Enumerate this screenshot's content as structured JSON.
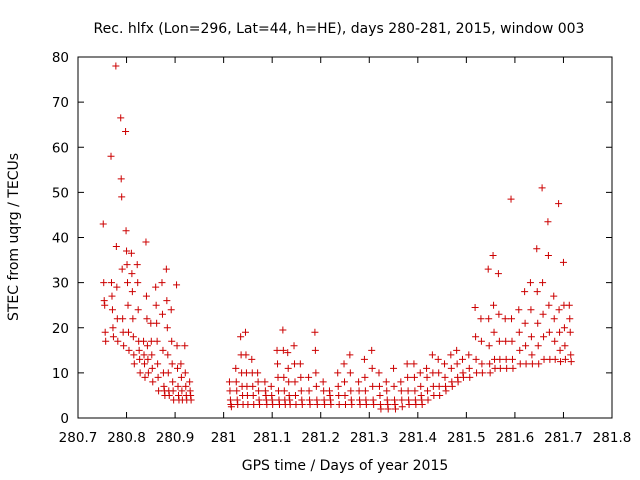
{
  "chart_data": {
    "type": "scatter",
    "title": "Rec. hlfx (Lon=296, Lat=44, h=HE), days 280-281, 2015, window 003",
    "xlabel": "GPS time / Days of year 2015",
    "ylabel": "STEC from uqrg / TECUs",
    "xlim": [
      280.7,
      281.8
    ],
    "ylim": [
      0,
      80
    ],
    "xticks": [
      280.7,
      280.8,
      280.9,
      281,
      281.1,
      281.2,
      281.3,
      281.4,
      281.5,
      281.6,
      281.7,
      281.8
    ],
    "xtick_labels": [
      "280.7",
      "280.8",
      "280.9",
      "281",
      "281.1",
      "281.2",
      "281.3",
      "281.4",
      "281.5",
      "281.6",
      "281.7",
      "281.8"
    ],
    "yticks": [
      0,
      10,
      20,
      30,
      40,
      50,
      60,
      70,
      80
    ],
    "ytick_labels": [
      "0",
      "10",
      "20",
      "30",
      "40",
      "50",
      "60",
      "70",
      "80"
    ],
    "grid": false,
    "marker": "plus",
    "color": "#cc0000",
    "points": [
      [
        280.752,
        43
      ],
      [
        280.753,
        30
      ],
      [
        280.754,
        26
      ],
      [
        280.755,
        25
      ],
      [
        280.756,
        19
      ],
      [
        280.757,
        17
      ],
      [
        280.768,
        58
      ],
      [
        280.769,
        30
      ],
      [
        280.77,
        27
      ],
      [
        280.771,
        24
      ],
      [
        280.772,
        20
      ],
      [
        280.773,
        18
      ],
      [
        280.778,
        78
      ],
      [
        280.779,
        38
      ],
      [
        280.78,
        29
      ],
      [
        280.781,
        22
      ],
      [
        280.782,
        17
      ],
      [
        280.788,
        66.5
      ],
      [
        280.789,
        53
      ],
      [
        280.79,
        49
      ],
      [
        280.791,
        33
      ],
      [
        280.792,
        22
      ],
      [
        280.793,
        19
      ],
      [
        280.794,
        16
      ],
      [
        280.798,
        63.5
      ],
      [
        280.799,
        41.5
      ],
      [
        280.8,
        37
      ],
      [
        280.801,
        34
      ],
      [
        280.802,
        30
      ],
      [
        280.803,
        25
      ],
      [
        280.804,
        19
      ],
      [
        280.805,
        15
      ],
      [
        280.81,
        36.5
      ],
      [
        280.811,
        32
      ],
      [
        280.812,
        28
      ],
      [
        280.813,
        22
      ],
      [
        280.814,
        18
      ],
      [
        280.815,
        14
      ],
      [
        280.816,
        12
      ],
      [
        280.822,
        34
      ],
      [
        280.823,
        30
      ],
      [
        280.824,
        24
      ],
      [
        280.825,
        17
      ],
      [
        280.826,
        15
      ],
      [
        280.827,
        13
      ],
      [
        280.828,
        10
      ],
      [
        280.835,
        17
      ],
      [
        280.836,
        14
      ],
      [
        280.837,
        12
      ],
      [
        280.838,
        9
      ],
      [
        280.84,
        39
      ],
      [
        280.841,
        27
      ],
      [
        280.842,
        22
      ],
      [
        280.843,
        16
      ],
      [
        280.844,
        13
      ],
      [
        280.845,
        10
      ],
      [
        280.85,
        21
      ],
      [
        280.851,
        17
      ],
      [
        280.852,
        14
      ],
      [
        280.853,
        11
      ],
      [
        280.854,
        8
      ],
      [
        280.86,
        29
      ],
      [
        280.861,
        25
      ],
      [
        280.862,
        21
      ],
      [
        280.863,
        17
      ],
      [
        280.864,
        12
      ],
      [
        280.865,
        9
      ],
      [
        280.866,
        6
      ],
      [
        280.873,
        30
      ],
      [
        280.874,
        23
      ],
      [
        280.875,
        15
      ],
      [
        280.876,
        10
      ],
      [
        280.877,
        7
      ],
      [
        280.878,
        6
      ],
      [
        280.879,
        5
      ],
      [
        280.882,
        33
      ],
      [
        280.883,
        26
      ],
      [
        280.884,
        20
      ],
      [
        280.885,
        14
      ],
      [
        280.886,
        10
      ],
      [
        280.887,
        6
      ],
      [
        280.888,
        5
      ],
      [
        280.892,
        24
      ],
      [
        280.893,
        17
      ],
      [
        280.894,
        12
      ],
      [
        280.895,
        8
      ],
      [
        280.896,
        6
      ],
      [
        280.897,
        4
      ],
      [
        280.903,
        29.5
      ],
      [
        280.904,
        16
      ],
      [
        280.905,
        11
      ],
      [
        280.906,
        7
      ],
      [
        280.907,
        5
      ],
      [
        280.908,
        4
      ],
      [
        280.912,
        12
      ],
      [
        280.913,
        9
      ],
      [
        280.914,
        6
      ],
      [
        280.915,
        4
      ],
      [
        280.92,
        16
      ],
      [
        280.921,
        10
      ],
      [
        280.922,
        7
      ],
      [
        280.923,
        5
      ],
      [
        280.924,
        4
      ],
      [
        280.93,
        8
      ],
      [
        280.931,
        6
      ],
      [
        280.932,
        5
      ],
      [
        280.933,
        4
      ],
      [
        281.012,
        8
      ],
      [
        281.013,
        6
      ],
      [
        281.014,
        4
      ],
      [
        281.015,
        3
      ],
      [
        281.016,
        2.5
      ],
      [
        281.025,
        11
      ],
      [
        281.026,
        8
      ],
      [
        281.027,
        6
      ],
      [
        281.028,
        4
      ],
      [
        281.029,
        3
      ],
      [
        281.035,
        18
      ],
      [
        281.036,
        14
      ],
      [
        281.037,
        10
      ],
      [
        281.038,
        7
      ],
      [
        281.039,
        5
      ],
      [
        281.04,
        3
      ],
      [
        281.045,
        19
      ],
      [
        281.046,
        14
      ],
      [
        281.047,
        10
      ],
      [
        281.048,
        7
      ],
      [
        281.049,
        5
      ],
      [
        281.05,
        3
      ],
      [
        281.058,
        13
      ],
      [
        281.059,
        10
      ],
      [
        281.06,
        7
      ],
      [
        281.061,
        5
      ],
      [
        281.062,
        3
      ],
      [
        281.07,
        10
      ],
      [
        281.071,
        8
      ],
      [
        281.072,
        6
      ],
      [
        281.073,
        4
      ],
      [
        281.074,
        3
      ],
      [
        281.085,
        8
      ],
      [
        281.086,
        6
      ],
      [
        281.087,
        5
      ],
      [
        281.088,
        4
      ],
      [
        281.089,
        3
      ],
      [
        281.098,
        7
      ],
      [
        281.099,
        5
      ],
      [
        281.1,
        4
      ],
      [
        281.101,
        3
      ],
      [
        281.11,
        15
      ],
      [
        281.111,
        12
      ],
      [
        281.112,
        9
      ],
      [
        281.113,
        6
      ],
      [
        281.114,
        4
      ],
      [
        281.115,
        3
      ],
      [
        281.122,
        19.5
      ],
      [
        281.123,
        15
      ],
      [
        281.124,
        9
      ],
      [
        281.125,
        6
      ],
      [
        281.126,
        4
      ],
      [
        281.127,
        3
      ],
      [
        281.132,
        14.5
      ],
      [
        281.133,
        11
      ],
      [
        281.134,
        8
      ],
      [
        281.135,
        5
      ],
      [
        281.136,
        4
      ],
      [
        281.137,
        3
      ],
      [
        281.145,
        16
      ],
      [
        281.146,
        12
      ],
      [
        281.147,
        8
      ],
      [
        281.148,
        5
      ],
      [
        281.149,
        3
      ],
      [
        281.158,
        12
      ],
      [
        281.159,
        9
      ],
      [
        281.16,
        6
      ],
      [
        281.161,
        4
      ],
      [
        281.162,
        3
      ],
      [
        281.175,
        9
      ],
      [
        281.176,
        6
      ],
      [
        281.177,
        4
      ],
      [
        281.178,
        3
      ],
      [
        281.188,
        19
      ],
      [
        281.189,
        15
      ],
      [
        281.19,
        10
      ],
      [
        281.191,
        7
      ],
      [
        281.192,
        4
      ],
      [
        281.193,
        3
      ],
      [
        281.205,
        8
      ],
      [
        281.206,
        6
      ],
      [
        281.207,
        4
      ],
      [
        281.208,
        3
      ],
      [
        281.218,
        6
      ],
      [
        281.219,
        5
      ],
      [
        281.22,
        4
      ],
      [
        281.221,
        3
      ],
      [
        281.235,
        10
      ],
      [
        281.236,
        7
      ],
      [
        281.237,
        5
      ],
      [
        281.238,
        3
      ],
      [
        281.248,
        12
      ],
      [
        281.249,
        8
      ],
      [
        281.25,
        5
      ],
      [
        281.251,
        3
      ],
      [
        281.26,
        14
      ],
      [
        281.261,
        10
      ],
      [
        281.262,
        6
      ],
      [
        281.263,
        4
      ],
      [
        281.264,
        3
      ],
      [
        281.278,
        8
      ],
      [
        281.279,
        6
      ],
      [
        281.28,
        4
      ],
      [
        281.281,
        3
      ],
      [
        281.29,
        13
      ],
      [
        281.291,
        9
      ],
      [
        281.292,
        6
      ],
      [
        281.293,
        4
      ],
      [
        281.294,
        3
      ],
      [
        281.305,
        15
      ],
      [
        281.306,
        11
      ],
      [
        281.307,
        7
      ],
      [
        281.308,
        4
      ],
      [
        281.309,
        3
      ],
      [
        281.32,
        10
      ],
      [
        281.321,
        7
      ],
      [
        281.322,
        5
      ],
      [
        281.323,
        3
      ],
      [
        281.324,
        2
      ],
      [
        281.335,
        8
      ],
      [
        281.336,
        6
      ],
      [
        281.337,
        4
      ],
      [
        281.338,
        3
      ],
      [
        281.339,
        2
      ],
      [
        281.35,
        11
      ],
      [
        281.351,
        7
      ],
      [
        281.352,
        4
      ],
      [
        281.353,
        3
      ],
      [
        281.354,
        2
      ],
      [
        281.365,
        8
      ],
      [
        281.366,
        6
      ],
      [
        281.367,
        4
      ],
      [
        281.368,
        2.5
      ],
      [
        281.378,
        12
      ],
      [
        281.379,
        9
      ],
      [
        281.38,
        6
      ],
      [
        281.381,
        4
      ],
      [
        281.382,
        3
      ],
      [
        281.392,
        12
      ],
      [
        281.393,
        9
      ],
      [
        281.394,
        6
      ],
      [
        281.395,
        4
      ],
      [
        281.396,
        3
      ],
      [
        281.405,
        10
      ],
      [
        281.406,
        7
      ],
      [
        281.407,
        5
      ],
      [
        281.408,
        4
      ],
      [
        281.409,
        3
      ],
      [
        281.418,
        11
      ],
      [
        281.419,
        9
      ],
      [
        281.42,
        6
      ],
      [
        281.421,
        4
      ],
      [
        281.43,
        14
      ],
      [
        281.431,
        10
      ],
      [
        281.432,
        7
      ],
      [
        281.433,
        5
      ],
      [
        281.442,
        13
      ],
      [
        281.443,
        10
      ],
      [
        281.444,
        7
      ],
      [
        281.445,
        5
      ],
      [
        281.455,
        12
      ],
      [
        281.456,
        9
      ],
      [
        281.457,
        7
      ],
      [
        281.458,
        6
      ],
      [
        281.468,
        14
      ],
      [
        281.469,
        11
      ],
      [
        281.47,
        8
      ],
      [
        281.471,
        7
      ],
      [
        281.48,
        15
      ],
      [
        281.481,
        12
      ],
      [
        281.482,
        9
      ],
      [
        281.483,
        8
      ],
      [
        281.492,
        13
      ],
      [
        281.493,
        10
      ],
      [
        281.494,
        9
      ],
      [
        281.505,
        14
      ],
      [
        281.506,
        11
      ],
      [
        281.507,
        9
      ],
      [
        281.518,
        24.5
      ],
      [
        281.519,
        18
      ],
      [
        281.52,
        13
      ],
      [
        281.521,
        10
      ],
      [
        281.53,
        22
      ],
      [
        281.531,
        17
      ],
      [
        281.532,
        12
      ],
      [
        281.533,
        10
      ],
      [
        281.545,
        33
      ],
      [
        281.546,
        22
      ],
      [
        281.547,
        16
      ],
      [
        281.548,
        12
      ],
      [
        281.549,
        10
      ],
      [
        281.555,
        36
      ],
      [
        281.556,
        25
      ],
      [
        281.557,
        19
      ],
      [
        281.558,
        13
      ],
      [
        281.559,
        11
      ],
      [
        281.566,
        32
      ],
      [
        281.567,
        23
      ],
      [
        281.568,
        17
      ],
      [
        281.569,
        13
      ],
      [
        281.57,
        11
      ],
      [
        281.58,
        22
      ],
      [
        281.581,
        17
      ],
      [
        281.582,
        13
      ],
      [
        281.583,
        11
      ],
      [
        281.592,
        48.5
      ],
      [
        281.593,
        22
      ],
      [
        281.594,
        17
      ],
      [
        281.595,
        13
      ],
      [
        281.596,
        11
      ],
      [
        281.608,
        24
      ],
      [
        281.609,
        19
      ],
      [
        281.61,
        15
      ],
      [
        281.611,
        12
      ],
      [
        281.62,
        28
      ],
      [
        281.621,
        21
      ],
      [
        281.622,
        16
      ],
      [
        281.623,
        12
      ],
      [
        281.632,
        30
      ],
      [
        281.633,
        24
      ],
      [
        281.634,
        18
      ],
      [
        281.635,
        14
      ],
      [
        281.636,
        12
      ],
      [
        281.645,
        37.5
      ],
      [
        281.646,
        28
      ],
      [
        281.647,
        21
      ],
      [
        281.648,
        16
      ],
      [
        281.649,
        12
      ],
      [
        281.656,
        51
      ],
      [
        281.657,
        30
      ],
      [
        281.658,
        23
      ],
      [
        281.659,
        18
      ],
      [
        281.66,
        13
      ],
      [
        281.668,
        43.5
      ],
      [
        281.669,
        36
      ],
      [
        281.67,
        25
      ],
      [
        281.671,
        19
      ],
      [
        281.672,
        13
      ],
      [
        281.68,
        27
      ],
      [
        281.681,
        22
      ],
      [
        281.682,
        17
      ],
      [
        281.683,
        13
      ],
      [
        281.69,
        47.5
      ],
      [
        281.691,
        24
      ],
      [
        281.692,
        19
      ],
      [
        281.693,
        15
      ],
      [
        281.694,
        12.5
      ],
      [
        281.7,
        34.5
      ],
      [
        281.701,
        25
      ],
      [
        281.702,
        20
      ],
      [
        281.703,
        16
      ],
      [
        281.704,
        13
      ],
      [
        281.712,
        25
      ],
      [
        281.713,
        22
      ],
      [
        281.714,
        19
      ],
      [
        281.715,
        14
      ],
      [
        281.716,
        12.5
      ]
    ]
  }
}
